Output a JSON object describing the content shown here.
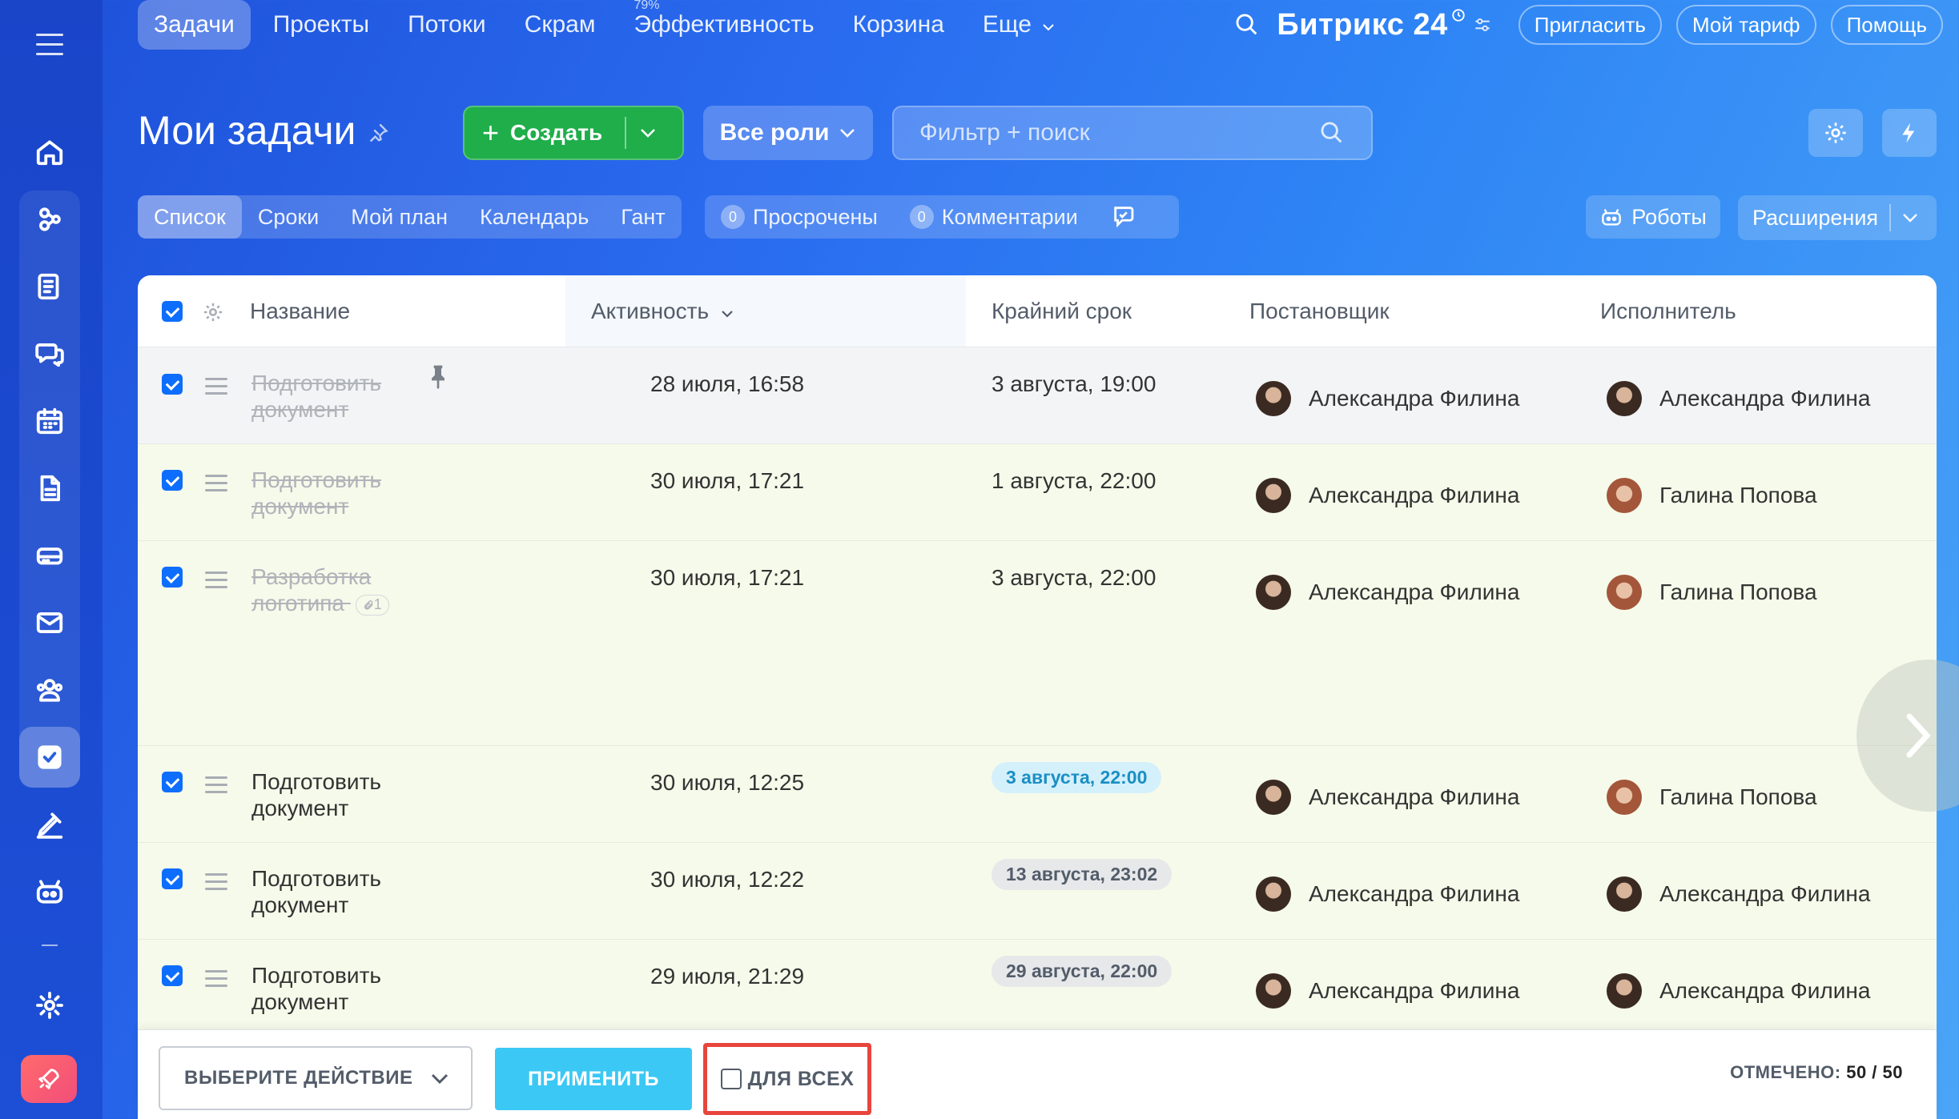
{
  "colors": {
    "accent": "#0d6efd",
    "create_button": "#1fae4a",
    "apply_button": "#3bc8f5",
    "highlight_frame": "#e8453c",
    "deadline_blue_bg": "#d4f0fb",
    "deadline_blue_text": "#1a8fc4",
    "deadline_gray_bg": "#e6e8ea",
    "deadline_gray_text": "#535c69"
  },
  "nav": {
    "tabs": [
      "Задачи",
      "Проекты",
      "Потоки",
      "Скрам",
      "Эффективность",
      "Корзина",
      "Еще"
    ],
    "efficiency_badge": "79%",
    "brand": "Битрикс 24",
    "invite": "Пригласить",
    "tariff": "Мой тариф",
    "help": "Помощь"
  },
  "page": {
    "title": "Мои задачи",
    "create_label": "Создать",
    "roles_label": "Все роли",
    "search_placeholder": "Фильтр + поиск"
  },
  "views": [
    "Список",
    "Сроки",
    "Мой план",
    "Календарь",
    "Гант"
  ],
  "counters": {
    "overdue_count": "0",
    "overdue_label": "Просрочены",
    "comments_count": "0",
    "comments_label": "Комментарии"
  },
  "robots_label": "Роботы",
  "extensions_label": "Расширения",
  "table": {
    "columns": {
      "name": "Название",
      "activity": "Активность",
      "deadline": "Крайний срок",
      "creator": "Постановщик",
      "responsible": "Исполнитель"
    },
    "rows": [
      {
        "name": "Подготовить документ",
        "activity": "28 июля, 16:58",
        "deadline": "3 августа, 19:00",
        "creator": "Александра Филина",
        "responsible": "Александра Филина"
      },
      {
        "name": "Подготовить документ",
        "activity": "30 июля, 17:21",
        "deadline": "1 августа, 22:00",
        "creator": "Александра Филина",
        "responsible": "Галина Попова"
      },
      {
        "name": "Разработка логотипа",
        "clips": "1",
        "activity": "30 июля, 17:21",
        "deadline": "3 августа, 22:00",
        "creator": "Александра Филина",
        "responsible": "Галина Попова"
      },
      {
        "name": "Подготовить документ",
        "activity": "30 июля, 12:25",
        "deadline": "3 августа, 22:00",
        "creator": "Александра Филина",
        "responsible": "Галина Попова"
      },
      {
        "name": "Подготовить документ",
        "activity": "30 июля, 12:22",
        "deadline": "13 августа, 23:02",
        "creator": "Александра Филина",
        "responsible": "Александра Филина"
      },
      {
        "name": "Подготовить документ",
        "activity": "29 июля, 21:29",
        "deadline": "29 августа, 22:00",
        "creator": "Александра Филина",
        "responsible": "Александра Филина"
      }
    ]
  },
  "footer": {
    "action_placeholder": "ВЫБЕРИТЕ ДЕЙСТВИЕ",
    "apply": "ПРИМЕНИТЬ",
    "for_all": "ДЛЯ ВСЕХ",
    "checked_label": "ОТМЕЧЕНО:",
    "checked_value": "50 / 50"
  }
}
